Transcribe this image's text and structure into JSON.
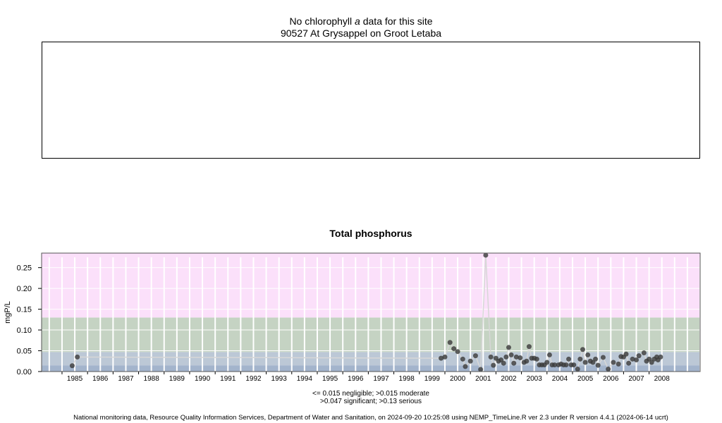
{
  "chlorophyll_panel": {
    "title_before": "No chlorophyll ",
    "title_italic": "a",
    "title_after": " data for this site",
    "site": "90527 At Grysappel on Groot Letaba"
  },
  "legend": {
    "line1": "<= 0.015 negligible; >0.015 moderate",
    "line2": ">0.047 significant; >0.13 serious"
  },
  "footer": "National monitoring data, Resource Quality Information Services, Department of Water and Sanitation, on 2024-09-20 10:25:08 using NEMP_TimeLine.R ver 2.3 under R version 4.4.1 (2024-06-14 ucrt)",
  "colors": {
    "negligible": "#a3b4cc",
    "moderate": "#bcc8d6",
    "significant": "#c5d3c3",
    "serious": "#fbe0fa",
    "points": "#3a3a3a",
    "line": "#d7d7d7",
    "grid": "#ffffff"
  },
  "chart_data": {
    "type": "scatter",
    "title": "Total phosphorus",
    "ylabel": "mgP/L",
    "xlabel": "",
    "ylim": [
      0.0,
      0.285
    ],
    "xlim": [
      1984.2,
      2010.0
    ],
    "yticks": [
      "0.00",
      "0.05",
      "0.10",
      "0.15",
      "0.20",
      "0.25"
    ],
    "xticks": [
      "1985",
      "1986",
      "1987",
      "1988",
      "1989",
      "1990",
      "1991",
      "1992",
      "1993",
      "1994",
      "1995",
      "1996",
      "1997",
      "1998",
      "1999",
      "2000",
      "2001",
      "2002",
      "2003",
      "2004",
      "2005",
      "2006",
      "2007",
      "2008"
    ],
    "bands": [
      {
        "label": "negligible",
        "from": 0.0,
        "to": 0.015
      },
      {
        "label": "moderate",
        "from": 0.015,
        "to": 0.047
      },
      {
        "label": "significant",
        "from": 0.047,
        "to": 0.13
      },
      {
        "label": "serious",
        "from": 0.13,
        "to": 0.285
      }
    ],
    "grid": true,
    "legend": "none",
    "series": [
      {
        "x": [
          1985.4,
          1985.6,
          1999.85,
          2000.0,
          2000.2,
          2000.35,
          2000.5,
          2000.7,
          2000.8,
          2001.0,
          2001.2,
          2001.4,
          2001.6,
          2001.8,
          2001.9,
          2002.0,
          2002.1,
          2002.2,
          2002.3,
          2002.4,
          2002.5,
          2002.6,
          2002.7,
          2002.8,
          2002.95,
          2003.1,
          2003.2,
          2003.3,
          2003.4,
          2003.5,
          2003.6,
          2003.7,
          2003.8,
          2003.9,
          2004.0,
          2004.1,
          2004.2,
          2004.3,
          2004.45,
          2004.55,
          2004.65,
          2004.75,
          2004.85,
          2004.95,
          2005.05,
          2005.2,
          2005.3,
          2005.4,
          2005.5,
          2005.6,
          2005.7,
          2005.8,
          2005.9,
          2006.0,
          2006.2,
          2006.4,
          2006.6,
          2006.8,
          2006.9,
          2007.0,
          2007.1,
          2007.2,
          2007.35,
          2007.5,
          2007.6,
          2007.8,
          2007.9,
          2008.0,
          2008.1,
          2008.2,
          2008.3,
          2008.35,
          2008.45
        ],
        "y": [
          0.014,
          0.035,
          0.032,
          0.035,
          0.07,
          0.055,
          0.048,
          0.03,
          0.012,
          0.025,
          0.038,
          0.005,
          0.28,
          0.035,
          0.015,
          0.032,
          0.025,
          0.028,
          0.02,
          0.035,
          0.058,
          0.04,
          0.02,
          0.035,
          0.033,
          0.022,
          0.025,
          0.06,
          0.032,
          0.032,
          0.03,
          0.016,
          0.016,
          0.016,
          0.022,
          0.04,
          0.016,
          0.016,
          0.016,
          0.018,
          0.016,
          0.016,
          0.03,
          0.016,
          0.016,
          0.006,
          0.03,
          0.053,
          0.022,
          0.04,
          0.025,
          0.022,
          0.03,
          0.015,
          0.034,
          0.006,
          0.022,
          0.018,
          0.036,
          0.035,
          0.042,
          0.02,
          0.03,
          0.028,
          0.038,
          0.045,
          0.025,
          0.03,
          0.022,
          0.03,
          0.035,
          0.028,
          0.035
        ]
      }
    ]
  }
}
